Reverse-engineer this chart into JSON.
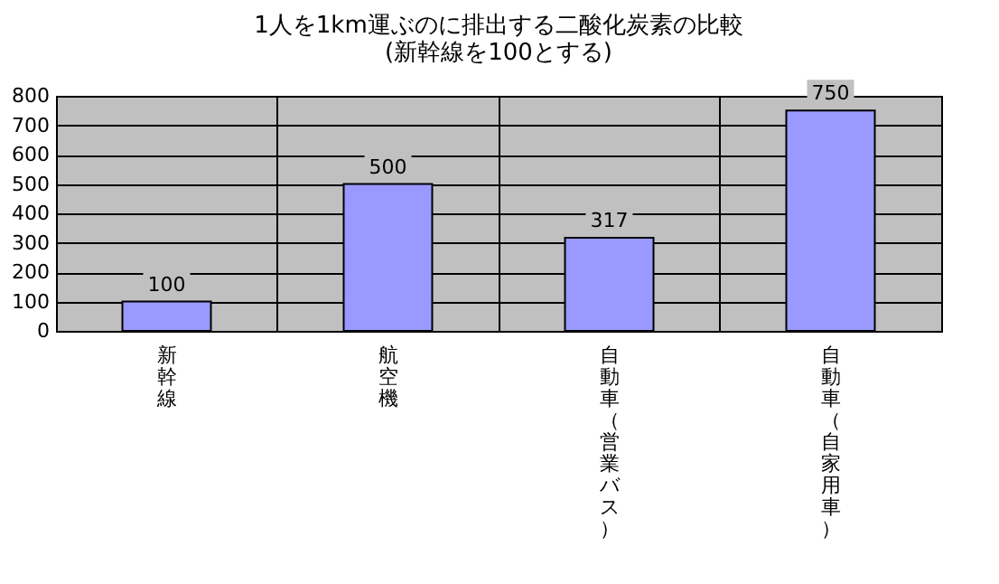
{
  "chart_data": {
    "type": "bar",
    "title": "1人を1km運ぶのに排出する二酸化炭素の比較",
    "subtitle": "(新幹線を100とする)",
    "categories": [
      "新幹線",
      "航空機",
      "自動車（営業バス）",
      "自動車（自家用車）"
    ],
    "values": [
      100,
      500,
      317,
      750
    ],
    "color": "#9999ff",
    "data_labels": true,
    "ylim": [
      0,
      800
    ],
    "yticks": [
      0,
      100,
      200,
      300,
      400,
      500,
      600,
      700,
      800
    ],
    "grid": true
  }
}
